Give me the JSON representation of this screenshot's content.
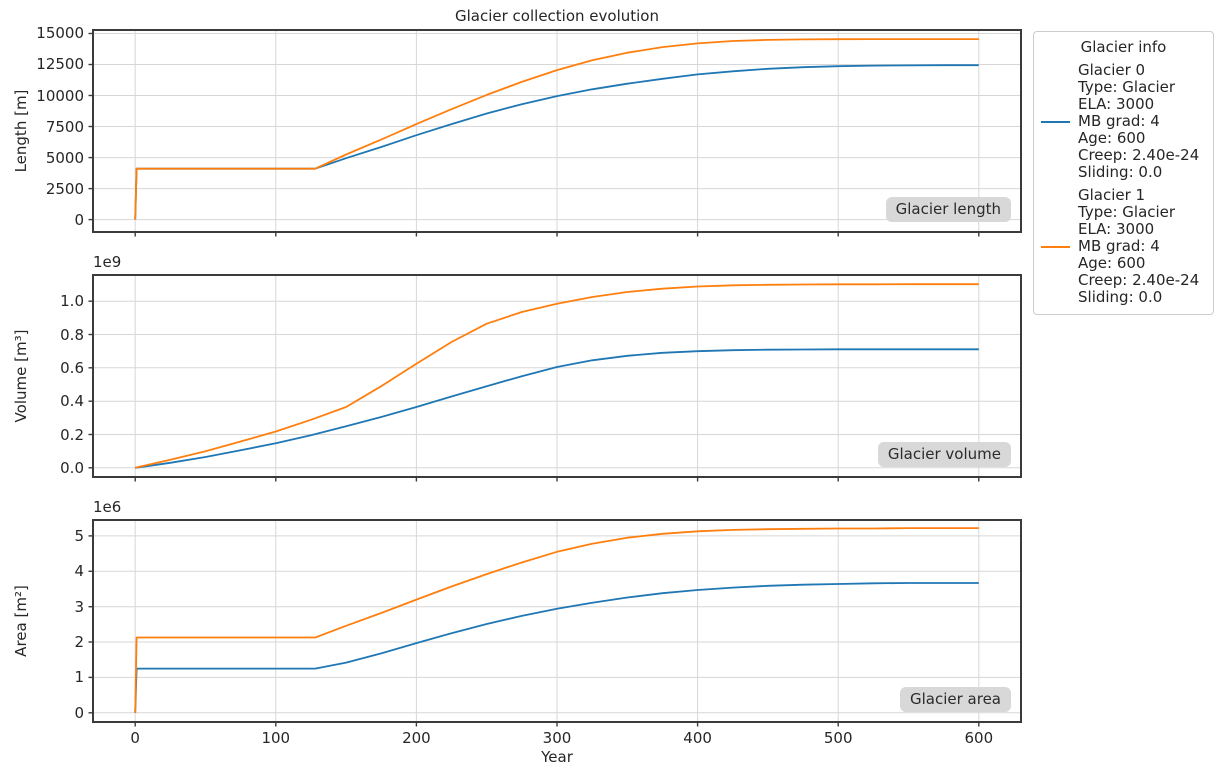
{
  "title": "Glacier collection evolution",
  "style": {
    "background": "#ffffff",
    "blue": "#1f77b4",
    "orange": "#ff7f0e",
    "grid_color": "#d7d7d7",
    "spine_color": "#3b3b3b",
    "text_color": "#262626",
    "label_box_bg": "#d6d6d6"
  },
  "x_axis": {
    "label": "Year",
    "xlim": [
      -30,
      630
    ],
    "ticks": [
      {
        "value": 0,
        "label": "0"
      },
      {
        "value": 100,
        "label": "100"
      },
      {
        "value": 200,
        "label": "200"
      },
      {
        "value": 300,
        "label": "300"
      },
      {
        "value": 400,
        "label": "400"
      },
      {
        "value": 500,
        "label": "500"
      },
      {
        "value": 600,
        "label": "600"
      }
    ]
  },
  "legend": {
    "title": "Glacier info",
    "position": "outside right",
    "entries": [
      {
        "color": "#1f77b4",
        "lines": [
          "Glacier 0",
          "Type: Glacier",
          "ELA: 3000",
          "MB grad: 4",
          "Age: 600",
          "Creep: 2.40e-24",
          "Sliding: 0.0"
        ]
      },
      {
        "color": "#ff7f0e",
        "lines": [
          "Glacier 1",
          "Type: Glacier",
          "ELA: 3000",
          "MB grad: 4",
          "Age: 600",
          "Creep: 2.40e-24",
          "Sliding: 0.0"
        ]
      }
    ]
  },
  "chart_data": [
    {
      "type": "line",
      "title_box": "Glacier length",
      "ylabel": "Length [m]",
      "offset_text": "",
      "grid": true,
      "xlim": [
        -30,
        630
      ],
      "ylim": [
        -1000,
        15280
      ],
      "yticks": [
        {
          "value": 0,
          "label": "0"
        },
        {
          "value": 2500,
          "label": "2500"
        },
        {
          "value": 5000,
          "label": "5000"
        },
        {
          "value": 7500,
          "label": "7500"
        },
        {
          "value": 10000,
          "label": "10000"
        },
        {
          "value": 12500,
          "label": "12500"
        },
        {
          "value": 15000,
          "label": "15000"
        }
      ],
      "x": [
        0,
        1,
        25,
        50,
        75,
        100,
        128,
        150,
        175,
        200,
        225,
        250,
        275,
        300,
        325,
        350,
        375,
        400,
        425,
        450,
        475,
        500,
        525,
        550,
        575,
        600
      ],
      "series": [
        {
          "name": "Glacier 0",
          "color": "#1f77b4",
          "values": [
            0,
            4100,
            4100,
            4100,
            4100,
            4100,
            4100,
            4950,
            5850,
            6800,
            7700,
            8550,
            9300,
            9950,
            10500,
            10950,
            11350,
            11700,
            11950,
            12150,
            12280,
            12360,
            12410,
            12430,
            12440,
            12440
          ]
        },
        {
          "name": "Glacier 1",
          "color": "#ff7f0e",
          "values": [
            0,
            4100,
            4100,
            4100,
            4100,
            4100,
            4100,
            5250,
            6450,
            7700,
            8900,
            10050,
            11100,
            12050,
            12850,
            13450,
            13900,
            14200,
            14390,
            14480,
            14520,
            14540,
            14550,
            14550,
            14550,
            14550
          ]
        }
      ]
    },
    {
      "type": "line",
      "title_box": "Glacier volume",
      "ylabel": "Volume [m³]",
      "offset_text": "1e9",
      "grid": true,
      "xlim": [
        -30,
        630
      ],
      "ylim": [
        -0.055,
        1.157
      ],
      "yticks": [
        {
          "value": 0.0,
          "label": "0.0"
        },
        {
          "value": 0.2,
          "label": "0.2"
        },
        {
          "value": 0.4,
          "label": "0.4"
        },
        {
          "value": 0.6,
          "label": "0.6"
        },
        {
          "value": 0.8,
          "label": "0.8"
        },
        {
          "value": 1.0,
          "label": "1.0"
        }
      ],
      "x": [
        0,
        25,
        50,
        75,
        100,
        125,
        150,
        175,
        200,
        225,
        250,
        275,
        300,
        325,
        350,
        375,
        400,
        425,
        450,
        475,
        500,
        525,
        550,
        575,
        600
      ],
      "series": [
        {
          "name": "Glacier 0",
          "color": "#1f77b4",
          "values": [
            0,
            0.03,
            0.065,
            0.105,
            0.148,
            0.196,
            0.25,
            0.305,
            0.365,
            0.428,
            0.49,
            0.55,
            0.605,
            0.645,
            0.672,
            0.69,
            0.7,
            0.706,
            0.709,
            0.71,
            0.711,
            0.711,
            0.711,
            0.711,
            0.711
          ]
        },
        {
          "name": "Glacier 1",
          "color": "#ff7f0e",
          "values": [
            0,
            0.048,
            0.1,
            0.158,
            0.218,
            0.288,
            0.365,
            0.49,
            0.625,
            0.755,
            0.865,
            0.935,
            0.985,
            1.025,
            1.055,
            1.075,
            1.088,
            1.095,
            1.098,
            1.1,
            1.101,
            1.101,
            1.102,
            1.102,
            1.102
          ]
        }
      ]
    },
    {
      "type": "line",
      "title_box": "Glacier area",
      "ylabel": "Area [m²]",
      "offset_text": "1e6",
      "grid": true,
      "xlim": [
        -30,
        630
      ],
      "ylim": [
        -0.26,
        5.45
      ],
      "yticks": [
        {
          "value": 0,
          "label": "0"
        },
        {
          "value": 1,
          "label": "1"
        },
        {
          "value": 2,
          "label": "2"
        },
        {
          "value": 3,
          "label": "3"
        },
        {
          "value": 4,
          "label": "4"
        },
        {
          "value": 5,
          "label": "5"
        }
      ],
      "x": [
        0,
        1,
        25,
        50,
        75,
        100,
        128,
        150,
        175,
        200,
        225,
        250,
        275,
        300,
        325,
        350,
        375,
        400,
        425,
        450,
        475,
        500,
        525,
        550,
        575,
        600
      ],
      "series": [
        {
          "name": "Glacier 0",
          "color": "#1f77b4",
          "values": [
            0,
            1.25,
            1.25,
            1.25,
            1.25,
            1.25,
            1.25,
            1.42,
            1.68,
            1.97,
            2.25,
            2.51,
            2.74,
            2.94,
            3.11,
            3.26,
            3.38,
            3.47,
            3.54,
            3.59,
            3.62,
            3.64,
            3.66,
            3.67,
            3.67,
            3.67
          ]
        },
        {
          "name": "Glacier 1",
          "color": "#ff7f0e",
          "values": [
            0,
            2.13,
            2.13,
            2.13,
            2.13,
            2.13,
            2.13,
            2.46,
            2.82,
            3.2,
            3.57,
            3.92,
            4.25,
            4.55,
            4.78,
            4.95,
            5.06,
            5.13,
            5.17,
            5.19,
            5.2,
            5.21,
            5.21,
            5.22,
            5.22,
            5.22
          ]
        }
      ]
    }
  ]
}
